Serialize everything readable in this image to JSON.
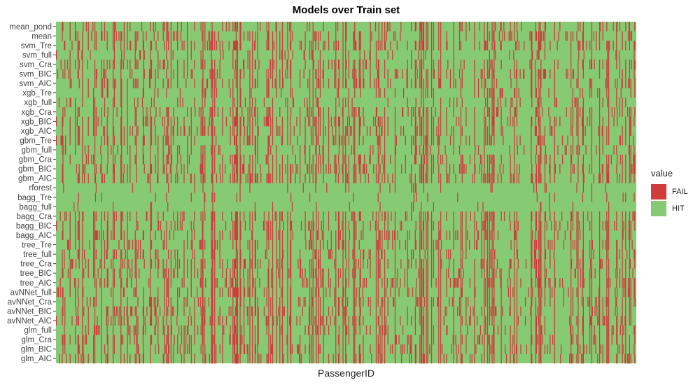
{
  "chart_data": {
    "type": "heatmap",
    "title": "Models over Train set",
    "xlabel": "PassengerID",
    "ylabel": "",
    "rows": [
      "mean_pond",
      "mean",
      "svm_Tre",
      "svm_full",
      "svm_Cra",
      "svm_BIC",
      "svm_AIC",
      "xgb_Tre",
      "xgb_full",
      "xgb_Cra",
      "xgb_BIC",
      "xgb_AIC",
      "gbm_Tre",
      "gbm_full",
      "gbm_Cra",
      "gbm_BIC",
      "gbm_AIC",
      "rforest",
      "bagg_Tre",
      "bagg_full",
      "bagg_Cra",
      "bagg_BIC",
      "bagg_AIC",
      "tree_Tre",
      "tree_full",
      "tree_Cra",
      "tree_BIC",
      "tree_AIC",
      "avNNet_full",
      "avNNet_Cra",
      "avNNet_BIC",
      "avNNet_AIC",
      "glm_full",
      "glm_Cra",
      "glm_BIC",
      "glm_AIC"
    ],
    "row_fail_rates": [
      0.16,
      0.17,
      0.17,
      0.1,
      0.17,
      0.18,
      0.18,
      0.12,
      0.11,
      0.17,
      0.19,
      0.19,
      0.16,
      0.11,
      0.17,
      0.19,
      0.19,
      0.05,
      0.03,
      0.02,
      0.17,
      0.19,
      0.19,
      0.18,
      0.16,
      0.19,
      0.2,
      0.2,
      0.17,
      0.19,
      0.2,
      0.2,
      0.19,
      0.2,
      0.2,
      0.2
    ],
    "n_columns": 891,
    "legend": {
      "title": "value",
      "placement": "right",
      "items": [
        {
          "label": "FAIL",
          "color": "#d03c3c"
        },
        {
          "label": "HIT",
          "color": "#86cb74"
        }
      ]
    }
  }
}
